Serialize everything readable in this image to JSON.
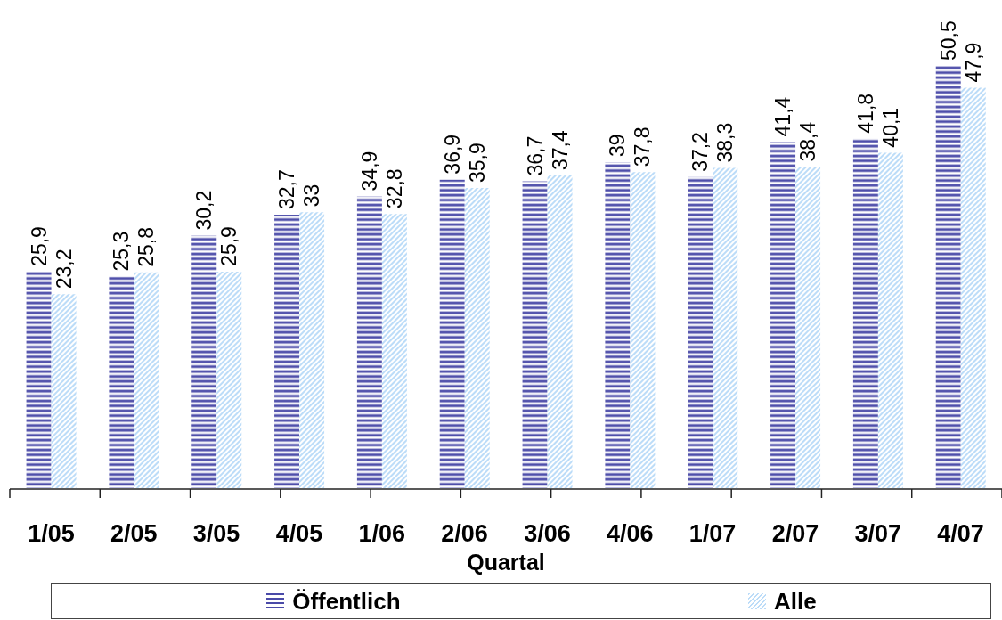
{
  "chart_data": {
    "type": "bar",
    "xlabel": "Quartal",
    "categories": [
      "1/05",
      "2/05",
      "3/05",
      "4/05",
      "1/06",
      "2/06",
      "3/06",
      "4/06",
      "1/07",
      "2/07",
      "3/07",
      "4/07"
    ],
    "series": [
      {
        "name": "Öffentlich",
        "color": "#4a4aa8",
        "values": [
          25.9,
          25.3,
          30.2,
          32.7,
          34.9,
          36.9,
          36.7,
          39,
          37.2,
          41.4,
          41.8,
          50.5
        ],
        "value_labels": [
          "25,9",
          "25,3",
          "30,2",
          "32,7",
          "34,9",
          "36,9",
          "36,7",
          "39",
          "37,2",
          "41,4",
          "41,8",
          "50,5"
        ]
      },
      {
        "name": "Alle",
        "color": "#bcdcf8",
        "values": [
          23.2,
          25.8,
          25.9,
          33,
          32.8,
          35.9,
          37.4,
          37.8,
          38.3,
          38.4,
          40.1,
          47.9
        ],
        "value_labels": [
          "23,2",
          "25,8",
          "25,9",
          "33",
          "32,8",
          "35,9",
          "37,4",
          "37,8",
          "38,3",
          "38,4",
          "40,1",
          "47,9"
        ]
      }
    ],
    "legend": "bottom",
    "tick_labels": "x"
  }
}
